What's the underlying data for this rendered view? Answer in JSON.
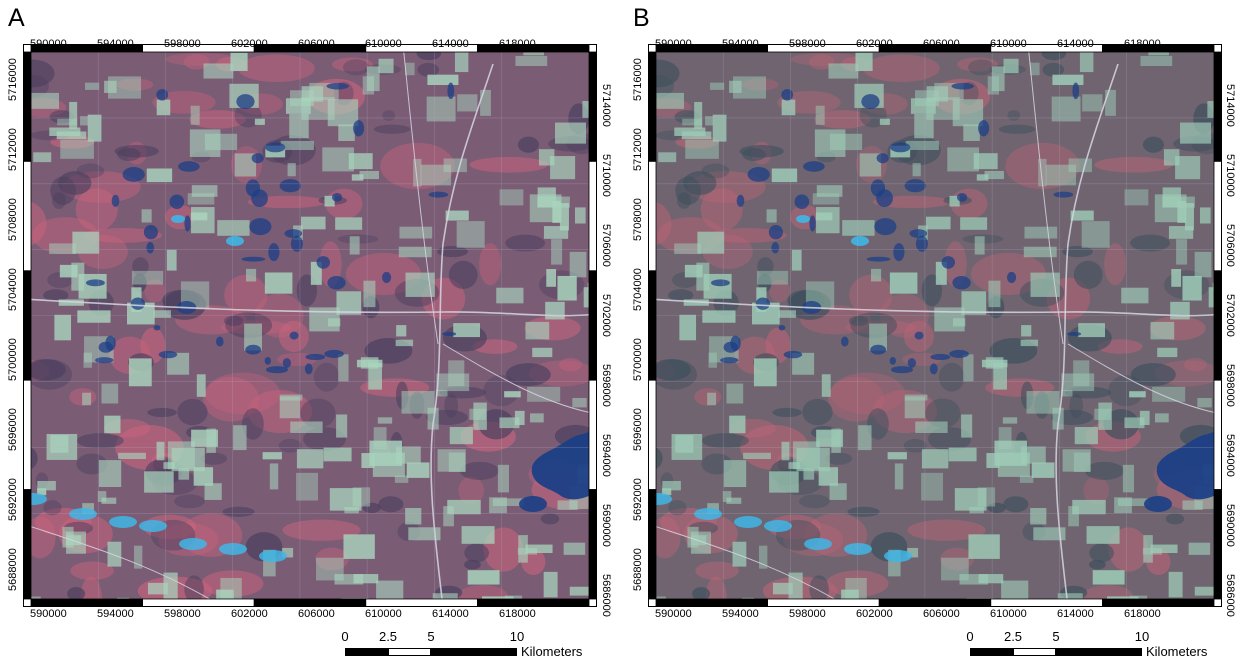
{
  "panels": [
    {
      "letter": "A",
      "variant": "a"
    },
    {
      "letter": "B",
      "variant": "b"
    }
  ],
  "easting_labels": [
    "590000",
    "594000",
    "598000",
    "602000",
    "606000",
    "610000",
    "614000",
    "618000"
  ],
  "northing_left_labels": [
    "5716000",
    "5712000",
    "5708000",
    "5704000",
    "5700000",
    "5696000",
    "5692000",
    "5688000"
  ],
  "northing_right_labels": [
    "5714000",
    "5710000",
    "5706000",
    "5702000",
    "5698000",
    "5694000",
    "5690000",
    "5686000"
  ],
  "scale_bar": {
    "ticks": [
      "0",
      "2.5",
      "5",
      "10"
    ],
    "unit": "Kilometers"
  },
  "colors": {
    "terrain_base": "#7a5c75",
    "vegetation_red": "#c9637c",
    "open_field": "#a9d4bd",
    "water_dark": "#1c3f86",
    "water_light": "#3fb6e6",
    "road": "#d6d6e0"
  }
}
